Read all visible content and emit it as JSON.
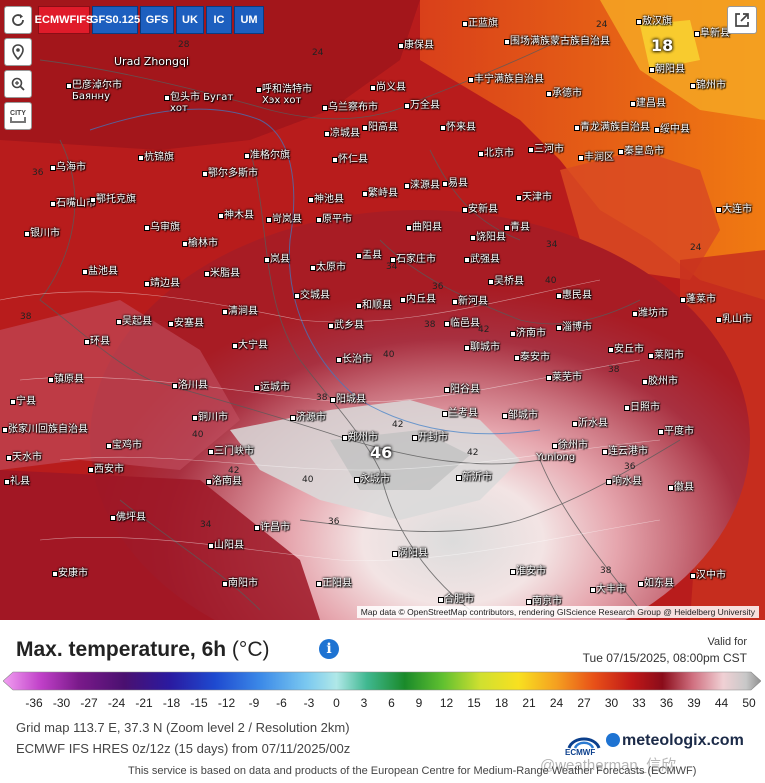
{
  "map": {
    "controls": {
      "refresh_icon": "refresh-icon",
      "location_icon": "location-pin-icon",
      "zoom_icon": "zoom-in-icon",
      "city_label": "CITY"
    },
    "models": [
      {
        "label": "ECMWF IFS",
        "active": true
      },
      {
        "label": "GFS 0.125",
        "active": false
      },
      {
        "label": "GFS",
        "active": false
      },
      {
        "label": "UK",
        "active": false
      },
      {
        "label": "IC",
        "active": false
      },
      {
        "label": "UM",
        "active": false
      }
    ],
    "share_icon": "share-icon",
    "attribution": "Map data © OpenStreetMap contributors, rendering GIScience Research Group @ Heidelberg University",
    "highlight_values": {
      "north_east": "18",
      "center": "46"
    },
    "cities": [
      {
        "name": "正蓝旗"
      },
      {
        "name": "围场满族蒙古族自治县"
      },
      {
        "name": "敖汉旗"
      },
      {
        "name": "阜新县"
      },
      {
        "name": "Urad Zhongqi"
      },
      {
        "name": "康保县"
      },
      {
        "name": "朝阳县"
      },
      {
        "name": "巴彦淖尔市 Баянну"
      },
      {
        "name": "尚义县"
      },
      {
        "name": "丰宁满族自治县"
      },
      {
        "name": "承德市"
      },
      {
        "name": "锦州市"
      },
      {
        "name": "包头市 Бугат хот"
      },
      {
        "name": "呼和浩特市 Хэх хот"
      },
      {
        "name": "乌兰察布市"
      },
      {
        "name": "万全县"
      },
      {
        "name": "建昌县"
      },
      {
        "name": "凉城县"
      },
      {
        "name": "阳高县"
      },
      {
        "name": "怀来县"
      },
      {
        "name": "青龙满族自治县"
      },
      {
        "name": "绥中县"
      },
      {
        "name": "乌海市"
      },
      {
        "name": "杭锦旗"
      },
      {
        "name": "准格尔旗"
      },
      {
        "name": "怀仁县"
      },
      {
        "name": "北京市"
      },
      {
        "name": "三河市"
      },
      {
        "name": "丰润区"
      },
      {
        "name": "秦皇岛市"
      },
      {
        "name": "鄂尔多斯市"
      },
      {
        "name": "涞源县"
      },
      {
        "name": "易县"
      },
      {
        "name": "石嘴山市"
      },
      {
        "name": "鄂托克旗"
      },
      {
        "name": "繁峙县"
      },
      {
        "name": "神池县"
      },
      {
        "name": "安新县"
      },
      {
        "name": "天津市"
      },
      {
        "name": "大连市"
      },
      {
        "name": "银川市"
      },
      {
        "name": "乌审旗"
      },
      {
        "name": "神木县"
      },
      {
        "name": "岢岚县"
      },
      {
        "name": "原平市"
      },
      {
        "name": "曲阳县"
      },
      {
        "name": "饶阳县"
      },
      {
        "name": "青县"
      },
      {
        "name": "榆林市"
      },
      {
        "name": "石家庄市"
      },
      {
        "name": "武强县"
      },
      {
        "name": "盐池县"
      },
      {
        "name": "米脂县"
      },
      {
        "name": "岚县"
      },
      {
        "name": "太原市"
      },
      {
        "name": "盂县"
      },
      {
        "name": "吴桥县"
      },
      {
        "name": "靖边县"
      },
      {
        "name": "交城县"
      },
      {
        "name": "内丘县"
      },
      {
        "name": "新河县"
      },
      {
        "name": "惠民县"
      },
      {
        "name": "蓬莱市"
      },
      {
        "name": "吴起县"
      },
      {
        "name": "安塞县"
      },
      {
        "name": "清涧县"
      },
      {
        "name": "和顺县"
      },
      {
        "name": "临邑县"
      },
      {
        "name": "潍坊市"
      },
      {
        "name": "乳山市"
      },
      {
        "name": "环县"
      },
      {
        "name": "大宁县"
      },
      {
        "name": "武乡县"
      },
      {
        "name": "聊城市"
      },
      {
        "name": "济南市"
      },
      {
        "name": "淄博市"
      },
      {
        "name": "安丘市"
      },
      {
        "name": "莱阳市"
      },
      {
        "name": "镇原县"
      },
      {
        "name": "洛川县"
      },
      {
        "name": "长治市"
      },
      {
        "name": "泰安市"
      },
      {
        "name": "莱芜市"
      },
      {
        "name": "胶州市"
      },
      {
        "name": "宁县"
      },
      {
        "name": "运城市"
      },
      {
        "name": "阳城县"
      },
      {
        "name": "阳谷县"
      },
      {
        "name": "Yunlong"
      },
      {
        "name": "沂水县"
      },
      {
        "name": "日照市"
      },
      {
        "name": "张家川回族自治县"
      },
      {
        "name": "铜川市"
      },
      {
        "name": "济源市"
      },
      {
        "name": "兰考县"
      },
      {
        "name": "邹城市"
      },
      {
        "name": "平度市"
      },
      {
        "name": "天水市"
      },
      {
        "name": "宝鸡市"
      },
      {
        "name": "三门峡市"
      },
      {
        "name": "郑州市"
      },
      {
        "name": "开封市"
      },
      {
        "name": "徐州市"
      },
      {
        "name": "连云港市"
      },
      {
        "name": "礼县"
      },
      {
        "name": "西安市"
      },
      {
        "name": "洛南县"
      },
      {
        "name": "永城市"
      },
      {
        "name": "新沂市"
      },
      {
        "name": "响水县"
      },
      {
        "name": "徽县"
      },
      {
        "name": "佛坪县"
      },
      {
        "name": "山阳县"
      },
      {
        "name": "许昌市"
      },
      {
        "name": "涡阳县"
      },
      {
        "name": "淮安市"
      },
      {
        "name": "大丰市"
      },
      {
        "name": "汉中市"
      },
      {
        "name": "安康市"
      },
      {
        "name": "南阳市"
      },
      {
        "name": "正阳县"
      },
      {
        "name": "合肥市"
      },
      {
        "name": "南京市"
      },
      {
        "name": "如东县"
      },
      {
        "name": "南江县"
      },
      {
        "name": "竹山县"
      },
      {
        "name": "随州市"
      },
      {
        "name": "商城县"
      },
      {
        "name": "六安市"
      },
      {
        "name": "泰兴市"
      }
    ],
    "iso_labels": [
      "18",
      "20",
      "22",
      "24",
      "26",
      "28",
      "30",
      "32",
      "34",
      "36",
      "38",
      "40",
      "42",
      "44"
    ]
  },
  "panel": {
    "title": "Max. temperature, 6h",
    "unit": "(°C)",
    "info_icon": "i",
    "valid_label": "Valid for",
    "valid_time": "Tue 07/15/2025, 08:00pm CST",
    "scale_ticks": [
      "-36",
      "-30",
      "-27",
      "-24",
      "-21",
      "-18",
      "-15",
      "-12",
      "-9",
      "-6",
      "-3",
      "0",
      "3",
      "6",
      "9",
      "12",
      "15",
      "18",
      "21",
      "24",
      "27",
      "30",
      "33",
      "36",
      "39",
      "44",
      "50"
    ],
    "grid_info": "Grid map 113.7 E, 37.3 N (Zoom level 2 / Resolution 2km)",
    "model_info": "ECMWF IFS HRES 0z/12z (15 days) from 07/11/2025/00z",
    "ecmwf_label": "ECMWF",
    "brand": "meteologix.com",
    "footer": "This service is based on data and products of the European Centre for Medium-Range Weather Forecasts (ECMWF)",
    "watermark": "@weatherman_信欣"
  }
}
